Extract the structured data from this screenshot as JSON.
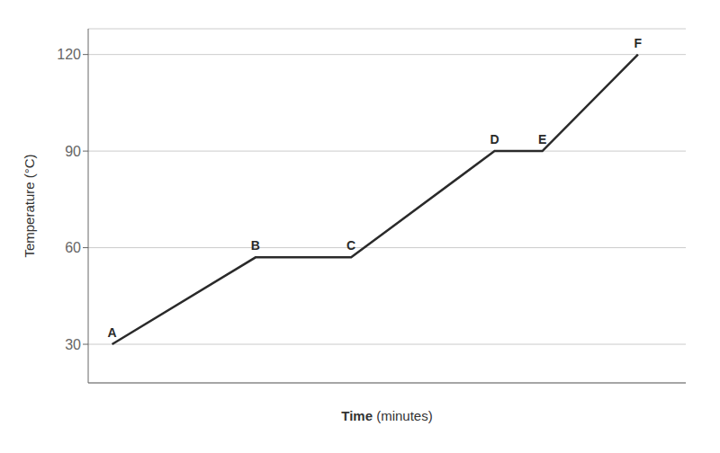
{
  "chart_data": {
    "type": "line",
    "x": [
      0,
      3,
      5,
      8,
      9,
      11
    ],
    "values": [
      30,
      57,
      57,
      90,
      90,
      120
    ],
    "color": "#2a2a2a",
    "xlabel": "Time (minutes)",
    "ylabel": "Temperature (°C)",
    "xlim": [
      -0.5,
      12.0
    ],
    "ylim": [
      18,
      128
    ],
    "yticks": [
      30,
      60,
      90,
      120
    ],
    "grid": true,
    "tick_labels": "y",
    "annotations": [
      {
        "text": "A",
        "x": 0,
        "y": 30
      },
      {
        "text": "B",
        "x": 3,
        "y": 57
      },
      {
        "text": "C",
        "x": 5,
        "y": 57
      },
      {
        "text": "D",
        "x": 8,
        "y": 90
      },
      {
        "text": "E",
        "x": 9,
        "y": 90
      },
      {
        "text": "F",
        "x": 11,
        "y": 120
      }
    ]
  }
}
